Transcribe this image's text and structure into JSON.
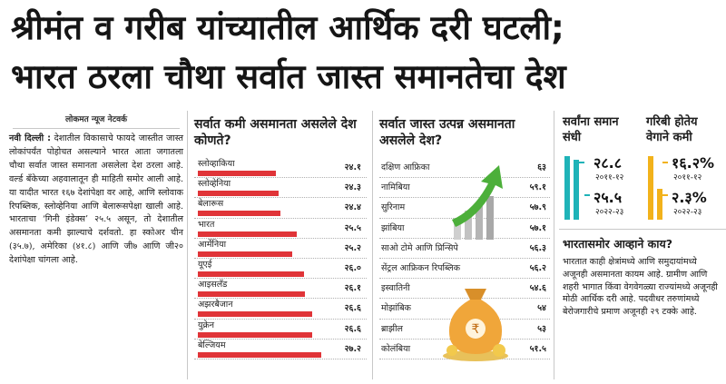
{
  "headline": {
    "line1": "श्रीमंत व गरीब यांच्यातील आर्थिक दरी घटली;",
    "line2": "भारत ठरला चौथा सर्वात जास्त समानतेचा देश"
  },
  "article": {
    "byline": "लोकमत न्यूज नेटवर्क",
    "dateline": "नवी दिल्ली :",
    "body": "देशातील विकासाचे फायदे जास्तीत जास्त लोकांपर्यंत पोहोचत असल्याने भारत आता जगातला चौथा सर्वात जास्त समानता असलेला देश ठरला आहे. वर्ल्ड बँकेच्या अहवालातून ही माहिती समोर आली आहे. या यादीत भारत १६७ देशांपेक्षा वर आहे, आणि स्लोवाक रिपब्लिक, स्लोव्हेनिया आणि बेलारूसपेक्षा खाली आहे. भारताचा ‘गिनी इंडेक्स’ २५.५ असून, तो देशातील असमानता कमी झाल्याचे दर्शवतो. हा स्कोअर चीन (३५.७), अमेरिका (४१.८) आणि जी७ आणि जी२० देशांपेक्षा चांगला आहे."
  },
  "least_inequality": {
    "title": "सर्वात कमी असमानता असलेले देश कोणते?",
    "bar_color": "#e03438",
    "rows": [
      {
        "label": "स्लोव्हाकिया",
        "value": "२४.१",
        "num": 24.1
      },
      {
        "label": "स्लोव्हेनिया",
        "value": "२४.३",
        "num": 24.3
      },
      {
        "label": "बेलारूस",
        "value": "२४.४",
        "num": 24.4
      },
      {
        "label": "भारत",
        "value": "२५.५",
        "num": 25.5
      },
      {
        "label": "आर्मेनिया",
        "value": "२५.२",
        "num": 25.2
      },
      {
        "label": "यूएई",
        "value": "२६.०",
        "num": 26.0
      },
      {
        "label": "आइसलँड",
        "value": "२६.१",
        "num": 26.1
      },
      {
        "label": "अझरबैजान",
        "value": "२६.६",
        "num": 26.6
      },
      {
        "label": "युक्रेन",
        "value": "२६.६",
        "num": 26.6
      },
      {
        "label": "बेल्जियम",
        "value": "२७.२",
        "num": 27.2
      }
    ]
  },
  "most_income_inequality": {
    "title": "सर्वात जास्त उत्पन्न असमानता असलेले देश?",
    "rows": [
      {
        "label": "दक्षिण आफ्रिका",
        "value": "६३"
      },
      {
        "label": "नामिबिया",
        "value": "५९.१"
      },
      {
        "label": "सुरिनाम",
        "value": "५७.९"
      },
      {
        "label": "झांबिया",
        "value": "५७.१"
      },
      {
        "label": "साओ टोमे आणि प्रिन्सिपे",
        "value": "५६.३"
      },
      {
        "label": "सेंट्रल आफ्रिकन रिपब्लिक",
        "value": "५६.२"
      },
      {
        "label": "इस्वातिनी",
        "value": "५४.६"
      },
      {
        "label": "मोझांबिक",
        "value": "५४"
      },
      {
        "label": "ब्राझील",
        "value": "५३"
      },
      {
        "label": "कोलंबिया",
        "value": "५१.५"
      }
    ]
  },
  "equal_opportunity": {
    "title": "सर्वांना समान संधी",
    "value1": "२८.८",
    "year1": "२०११-१२",
    "value2": "२५.५",
    "year2": "२०२२-२३",
    "color": "#1fb3b8"
  },
  "poverty": {
    "title": "गरिबी होतेय वेगाने कमी",
    "value1": "१६.२%",
    "year1": "२०११-१२",
    "value2": "२.३%",
    "year2": "२०२२-२३",
    "color": "#f2b21b"
  },
  "challenges": {
    "title": "भारतासमोर आव्हाने काय?",
    "body": "भारतात काही क्षेत्रांमध्ये आणि समुदायांमध्ये अजूनही असमानता कायम आहे. ग्रामीण आणि शहरी भागात किंवा वेगवेगळ्या राज्यांमध्ये अजूनही मोठी आर्थिक दरी आहे. पदवीधर तरुणांमध्ये बेरोजगारीचे प्रमाण अजूनही २९ टक्के आहे."
  }
}
